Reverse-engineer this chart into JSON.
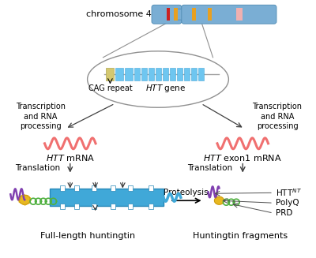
{
  "bg": "#ffffff",
  "chr_main": "#7aaed4",
  "chr_edge": "#5590b8",
  "band_red": "#cc2222",
  "band_orange": "#e8a020",
  "band_pink": "#f0b0b0",
  "exon_color": "#6ec6f0",
  "exon_edge": "#4aa8d8",
  "cag_color": "#d4c870",
  "cag_edge": "#b0a850",
  "ellipse_edge": "#909090",
  "mrna_color": "#f07070",
  "arrow_color": "#404040",
  "protein_blue": "#40a8d8",
  "protein_purple": "#8040b0",
  "protein_yellow": "#e8b820",
  "protein_green": "#50b040",
  "line_color": "#909090",
  "chr_label": "chromosome 4",
  "htt_gene": "HTT gene",
  "cag_label": "CAG repeat",
  "trans_label": "Transcription\nand RNA\nprocessing",
  "mrna_left": "HTT mRNA",
  "mrna_right": "HTT exon1 mRNA",
  "translation": "Translation",
  "proteolysis": "Proteolysis",
  "full_length": "Full-length huntingtin",
  "fragments": "Huntingtin fragments",
  "httnt": "HTT$^{NT}$",
  "polyq": "PolyQ",
  "prd": "PRD"
}
